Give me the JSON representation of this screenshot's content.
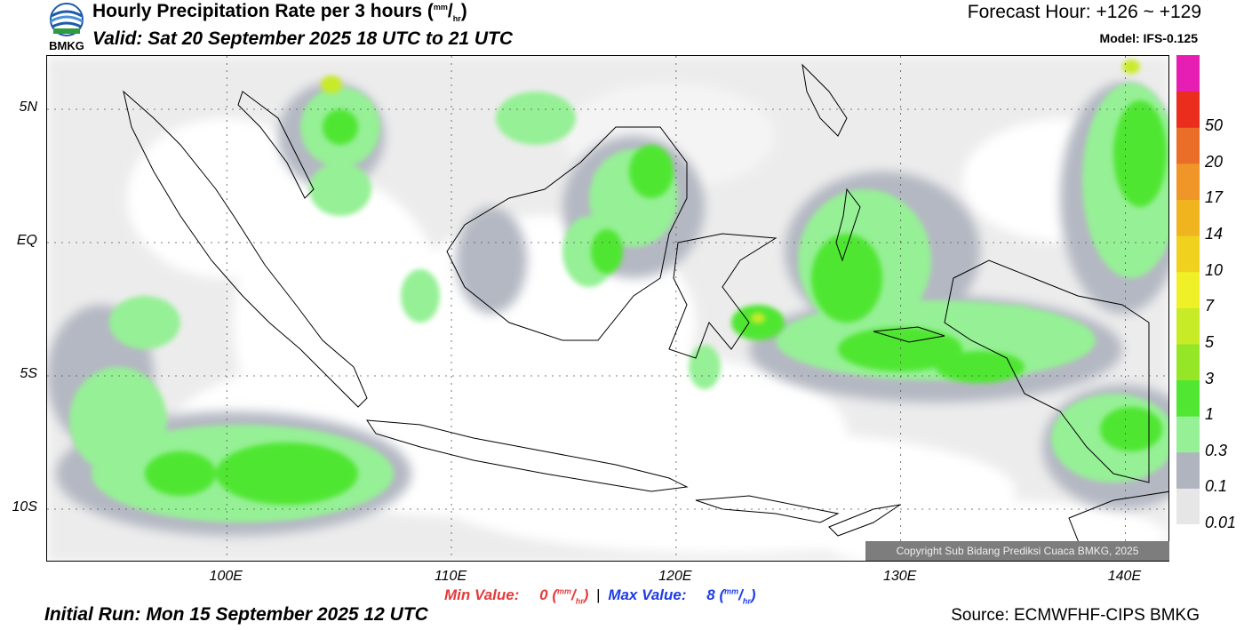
{
  "header": {
    "title_text": "Hourly Precipitation Rate per 3 hours (",
    "title_unit_num": "mm",
    "title_unit_den": "hr",
    "title_close": ")",
    "valid": "Valid: Sat 20 September 2025 18 UTC to 21 UTC",
    "forecast_hour": "Forecast Hour: +126 ~ +129",
    "model": "Model: IFS-0.125",
    "logo_text": "BMKG"
  },
  "map": {
    "lon_range": [
      92,
      142
    ],
    "lat_range": [
      -12,
      7
    ],
    "lat_ticks": [
      {
        "label": "5N",
        "lat": 5
      },
      {
        "label": "EQ",
        "lat": 0
      },
      {
        "label": "5S",
        "lat": -5
      },
      {
        "label": "10S",
        "lat": -10
      }
    ],
    "lon_ticks": [
      {
        "label": "100E",
        "lon": 100
      },
      {
        "label": "110E",
        "lon": 110
      },
      {
        "label": "120E",
        "lon": 120
      },
      {
        "label": "130E",
        "lon": 130
      },
      {
        "label": "140E",
        "lon": 140
      }
    ],
    "copyright": "Copyright Sub Bidang Prediksi Cuaca BMKG, 2025"
  },
  "legend": {
    "unit": "mm/hr",
    "levels": [
      {
        "label": "0.01",
        "color": "#e6e6e6"
      },
      {
        "label": "0.1",
        "color": "#b0b4be"
      },
      {
        "label": "0.3",
        "color": "#96f096"
      },
      {
        "label": "1",
        "color": "#50e632"
      },
      {
        "label": "3",
        "color": "#96e628"
      },
      {
        "label": "5",
        "color": "#c8eb28"
      },
      {
        "label": "7",
        "color": "#f0f028"
      },
      {
        "label": "10",
        "color": "#f0d21e"
      },
      {
        "label": "14",
        "color": "#f0b41e"
      },
      {
        "label": "17",
        "color": "#f09628"
      },
      {
        "label": "20",
        "color": "#eb6e28"
      },
      {
        "label": "50",
        "color": "#eb2d1e"
      },
      {
        "label": "",
        "color": "#e61eb4"
      }
    ]
  },
  "footer": {
    "min_label": "Min Value:",
    "min_value": "0",
    "max_label": "Max Value:",
    "max_value": "8",
    "separator": "|",
    "unit_num": "mm",
    "unit_den": "hr",
    "initial_run": "Initial Run: Mon 15 September 2025 12 UTC",
    "source": "Source: ECMWFHF-CIPS BMKG"
  }
}
